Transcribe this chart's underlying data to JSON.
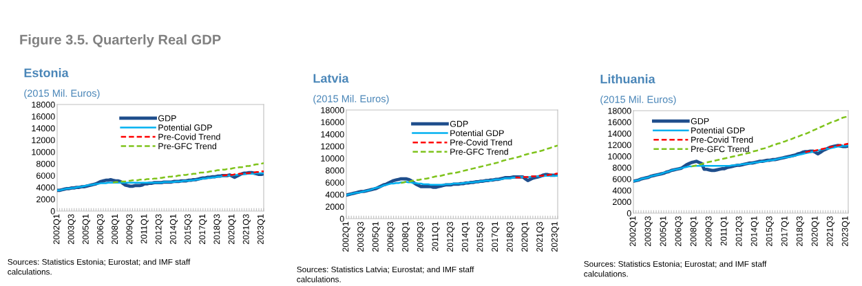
{
  "chart_data": [
    {
      "type": "line",
      "title": "Estonia",
      "subtitle": "(2015 Mil. Euros)",
      "annotations": [
        "Figure 3.5. Quarterly Real GDP",
        "Sources: Statistics Estonia; Eurostat; and IMF staff calculations."
      ],
      "categories": [
        "2002Q1",
        null,
        null,
        null,
        null,
        null,
        "2003Q3",
        null,
        null,
        null,
        null,
        null,
        "2005Q1",
        null,
        null,
        null,
        null,
        null,
        "2006Q3",
        null,
        null,
        null,
        null,
        null,
        "2008Q1",
        null,
        null,
        null,
        null,
        null,
        "2009Q3",
        null,
        null,
        null,
        null,
        null,
        "2011Q1",
        null,
        null,
        null,
        null,
        null,
        "2012Q3",
        null,
        null,
        null,
        null,
        null,
        "2014Q1",
        null,
        null,
        null,
        null,
        null,
        "2015Q3",
        null,
        null,
        null,
        null,
        null,
        "2017Q1",
        null,
        null,
        null,
        null,
        null,
        "2018Q3",
        null,
        null,
        null,
        null,
        null,
        "2020Q1",
        null,
        null,
        null,
        null,
        null,
        "2021Q3",
        null,
        null,
        null,
        null,
        null,
        "2023Q1",
        null
      ],
      "ylim": [
        0,
        18000
      ],
      "yticks": [
        0,
        2000,
        4000,
        6000,
        8000,
        10000,
        12000,
        14000,
        16000,
        18000
      ],
      "grid": false,
      "legend": "top",
      "series": [
        {
          "name": "GDP",
          "color": "#1f4e8c",
          "line_style": "solid",
          "values": [
            3500,
            3500,
            3600,
            3700,
            3800,
            3800,
            3900,
            3900,
            4000,
            4000,
            4100,
            4100,
            4200,
            4300,
            4400,
            4500,
            4600,
            4800,
            5000,
            5100,
            5200,
            5200,
            5300,
            5200,
            5100,
            5100,
            5000,
            4700,
            4400,
            4300,
            4200,
            4200,
            4300,
            4300,
            4300,
            4400,
            4600,
            4600,
            4700,
            4700,
            4800,
            4800,
            4800,
            4800,
            4900,
            4900,
            4900,
            4900,
            5000,
            5000,
            5000,
            5100,
            5100,
            5100,
            5200,
            5200,
            5300,
            5300,
            5400,
            5500,
            5600,
            5600,
            5700,
            5700,
            5800,
            5800,
            5900,
            5900,
            6000,
            6000,
            6000,
            6100,
            5900,
            5700,
            5900,
            6100,
            6300,
            6400,
            6400,
            6500,
            6500,
            6400,
            6300,
            6200,
            6200,
            6300
          ]
        },
        {
          "name": "Potential GDP",
          "color": "#00b0f0",
          "line_style": "solid",
          "values": [
            3500,
            3500,
            3600,
            3700,
            3800,
            3800,
            3900,
            3900,
            4000,
            4100,
            4100,
            4200,
            4300,
            4400,
            4400,
            4500,
            4600,
            4600,
            4700,
            4700,
            4700,
            4800,
            4800,
            4800,
            4800,
            4800,
            4800,
            4800,
            4800,
            4800,
            4800,
            4800,
            4800,
            4800,
            4800,
            4800,
            4800,
            4800,
            4800,
            4800,
            4800,
            4800,
            4800,
            4800,
            4900,
            4900,
            4900,
            4900,
            4900,
            5000,
            5000,
            5000,
            5100,
            5100,
            5100,
            5200,
            5200,
            5300,
            5300,
            5400,
            5500,
            5500,
            5600,
            5600,
            5700,
            5700,
            5800,
            5800,
            5900,
            5900,
            6000,
            6000,
            6000,
            6100,
            6100,
            6200,
            6200,
            6200,
            6300,
            6300,
            6300,
            6300,
            6400,
            6400,
            6400,
            6400
          ]
        },
        {
          "name": "Pre-Covid Trend",
          "color": "#ff0000",
          "line_style": "dashed",
          "values": [
            null,
            null,
            null,
            null,
            null,
            null,
            null,
            null,
            null,
            null,
            null,
            null,
            null,
            null,
            null,
            null,
            null,
            null,
            null,
            null,
            null,
            null,
            null,
            null,
            null,
            null,
            null,
            null,
            null,
            null,
            null,
            null,
            null,
            null,
            null,
            null,
            null,
            null,
            null,
            null,
            null,
            null,
            null,
            null,
            null,
            null,
            null,
            null,
            null,
            null,
            null,
            null,
            null,
            null,
            null,
            null,
            null,
            null,
            null,
            null,
            null,
            null,
            null,
            null,
            null,
            null,
            null,
            null,
            6000,
            6000,
            6100,
            6100,
            6100,
            6200,
            6200,
            6300,
            6300,
            6300,
            6400,
            6400,
            6500,
            6500,
            6600,
            6600,
            6700,
            6700
          ]
        },
        {
          "name": "Pre-GFC Trend",
          "color": "#7fc31c",
          "line_style": "dashed",
          "values": [
            null,
            null,
            null,
            null,
            null,
            null,
            null,
            null,
            null,
            null,
            null,
            null,
            null,
            null,
            null,
            null,
            null,
            null,
            null,
            null,
            null,
            null,
            null,
            4800,
            4900,
            4900,
            5000,
            5000,
            5000,
            5100,
            5100,
            5200,
            5200,
            5200,
            5300,
            5300,
            5300,
            5400,
            5400,
            5400,
            5500,
            5500,
            5600,
            5600,
            5700,
            5700,
            5800,
            5800,
            5900,
            5900,
            6000,
            6000,
            6100,
            6100,
            6200,
            6200,
            6300,
            6300,
            6400,
            6500,
            6500,
            6600,
            6600,
            6700,
            6700,
            6800,
            6900,
            6900,
            7000,
            7000,
            7100,
            7100,
            7200,
            7300,
            7300,
            7400,
            7400,
            7500,
            7600,
            7600,
            7700,
            7800,
            7900,
            7900,
            8000,
            8100
          ]
        }
      ]
    },
    {
      "type": "line",
      "title": "Latvia",
      "subtitle": "(2015 Mil. Euros)",
      "annotations": [
        "Sources: Statistics Latvia; Eurostat; and IMF staff calculations."
      ],
      "categories": [
        "2002Q1",
        null,
        null,
        null,
        null,
        null,
        "2003Q3",
        null,
        null,
        null,
        null,
        null,
        "2005Q1",
        null,
        null,
        null,
        null,
        null,
        "2006Q3",
        null,
        null,
        null,
        null,
        null,
        "2008Q1",
        null,
        null,
        null,
        null,
        null,
        "2009Q3",
        null,
        null,
        null,
        null,
        null,
        "2011Q1",
        null,
        null,
        null,
        null,
        null,
        "2012Q3",
        null,
        null,
        null,
        null,
        null,
        "2014Q1",
        null,
        null,
        null,
        null,
        null,
        "2015Q3",
        null,
        null,
        null,
        null,
        null,
        "2017Q1",
        null,
        null,
        null,
        null,
        null,
        "2018Q3",
        null,
        null,
        null,
        null,
        null,
        "2020Q1",
        null,
        null,
        null,
        null,
        null,
        "2021Q3",
        null,
        null,
        null,
        null,
        null,
        "2023Q1",
        null
      ],
      "ylim": [
        0,
        18000
      ],
      "yticks": [
        0,
        2000,
        4000,
        6000,
        8000,
        10000,
        12000,
        14000,
        16000,
        18000
      ],
      "grid": false,
      "legend": "top",
      "series": [
        {
          "name": "GDP",
          "color": "#1f4e8c",
          "line_style": "solid",
          "values": [
            3900,
            4000,
            4100,
            4200,
            4300,
            4400,
            4500,
            4500,
            4600,
            4700,
            4800,
            4900,
            5000,
            5200,
            5400,
            5600,
            5700,
            5900,
            6100,
            6300,
            6400,
            6500,
            6600,
            6600,
            6600,
            6500,
            6300,
            6000,
            5700,
            5500,
            5300,
            5300,
            5300,
            5300,
            5300,
            5200,
            5200,
            5300,
            5400,
            5500,
            5600,
            5600,
            5600,
            5700,
            5700,
            5700,
            5800,
            5800,
            5900,
            5900,
            6000,
            6000,
            6100,
            6100,
            6200,
            6200,
            6300,
            6300,
            6400,
            6400,
            6500,
            6500,
            6600,
            6700,
            6800,
            6800,
            6800,
            6900,
            6900,
            6900,
            6900,
            6900,
            6600,
            6300,
            6500,
            6700,
            6800,
            6900,
            7000,
            7200,
            7300,
            7300,
            7200,
            7200,
            7200,
            7300
          ]
        },
        {
          "name": "Potential GDP",
          "color": "#00b0f0",
          "line_style": "solid",
          "values": [
            3900,
            4000,
            4100,
            4200,
            4300,
            4300,
            4400,
            4500,
            4600,
            4700,
            4800,
            5000,
            5100,
            5200,
            5300,
            5500,
            5600,
            5700,
            5800,
            5800,
            5900,
            5900,
            6000,
            6000,
            6100,
            6000,
            6000,
            5900,
            5900,
            5800,
            5800,
            5700,
            5700,
            5700,
            5600,
            5600,
            5600,
            5600,
            5600,
            5600,
            5700,
            5700,
            5700,
            5800,
            5800,
            5800,
            5800,
            5900,
            5900,
            6000,
            6000,
            6000,
            6100,
            6100,
            6200,
            6200,
            6300,
            6300,
            6300,
            6400,
            6500,
            6500,
            6500,
            6600,
            6700,
            6700,
            6700,
            6800,
            6800,
            6800,
            6900,
            6900,
            6900,
            6900,
            6900,
            7000,
            7000,
            7000,
            7000,
            7000,
            7100,
            7100,
            7100,
            7100,
            7100,
            7100
          ]
        },
        {
          "name": "Pre-Covid Trend",
          "color": "#ff0000",
          "line_style": "dashed",
          "values": [
            null,
            null,
            null,
            null,
            null,
            null,
            null,
            null,
            null,
            null,
            null,
            null,
            null,
            null,
            null,
            null,
            null,
            null,
            null,
            null,
            null,
            null,
            null,
            null,
            null,
            null,
            null,
            null,
            null,
            null,
            null,
            null,
            null,
            null,
            null,
            null,
            null,
            null,
            null,
            null,
            null,
            null,
            null,
            null,
            null,
            null,
            null,
            null,
            null,
            null,
            null,
            null,
            null,
            null,
            null,
            null,
            null,
            null,
            null,
            null,
            null,
            null,
            null,
            null,
            null,
            null,
            null,
            null,
            6800,
            6800,
            6800,
            6900,
            6900,
            6900,
            7000,
            7000,
            7000,
            7100,
            7100,
            7100,
            7200,
            7200,
            7300,
            7300,
            7400,
            7500
          ]
        },
        {
          "name": "Pre-GFC Trend",
          "color": "#7fc31c",
          "line_style": "dashed",
          "values": [
            null,
            null,
            null,
            null,
            null,
            null,
            null,
            null,
            null,
            null,
            null,
            null,
            null,
            null,
            null,
            null,
            null,
            null,
            null,
            null,
            null,
            null,
            5900,
            6000,
            6100,
            6100,
            6200,
            6300,
            6400,
            6400,
            6500,
            6600,
            6600,
            6700,
            6800,
            6900,
            7000,
            7000,
            7100,
            7200,
            7300,
            7400,
            7500,
            7500,
            7600,
            7700,
            7800,
            7900,
            8000,
            8100,
            8200,
            8300,
            8400,
            8500,
            8600,
            8700,
            8800,
            8900,
            9000,
            9100,
            9200,
            9300,
            9400,
            9600,
            9700,
            9800,
            9900,
            10000,
            10100,
            10200,
            10300,
            10500,
            10600,
            10700,
            10800,
            10900,
            11000,
            11100,
            11200,
            11300,
            11500,
            11600,
            11700,
            11900,
            12000,
            12100
          ]
        }
      ]
    },
    {
      "type": "line",
      "title": "Lithuania",
      "subtitle": "(2015 Mil. Euros)",
      "annotations": [
        "Sources: Statistics Estonia; Eurostat; and IMF staff calculations."
      ],
      "categories": [
        "2002Q1",
        null,
        null,
        null,
        null,
        null,
        "2003Q3",
        null,
        null,
        null,
        null,
        null,
        "2005Q1",
        null,
        null,
        null,
        null,
        null,
        "2006Q3",
        null,
        null,
        null,
        null,
        null,
        "2008Q1",
        null,
        null,
        null,
        null,
        null,
        "2009Q3",
        null,
        null,
        null,
        null,
        null,
        "2011Q1",
        null,
        null,
        null,
        null,
        null,
        "2012Q3",
        null,
        null,
        null,
        null,
        null,
        "2014Q1",
        null,
        null,
        null,
        null,
        null,
        "2015Q3",
        null,
        null,
        null,
        null,
        null,
        "2017Q1",
        null,
        null,
        null,
        null,
        null,
        "2018Q3",
        null,
        null,
        null,
        null,
        null,
        "2020Q1",
        null,
        null,
        null,
        null,
        null,
        "2021Q3",
        null,
        null,
        null,
        null,
        null,
        "2023Q1",
        null
      ],
      "ylim": [
        0,
        18000
      ],
      "yticks": [
        0,
        2000,
        4000,
        6000,
        8000,
        10000,
        12000,
        14000,
        16000,
        18000
      ],
      "grid": false,
      "legend": "top left",
      "series": [
        {
          "name": "GDP",
          "color": "#1f4e8c",
          "line_style": "solid",
          "values": [
            5600,
            5700,
            5800,
            6000,
            6100,
            6200,
            6300,
            6500,
            6600,
            6700,
            6800,
            6900,
            7000,
            7200,
            7300,
            7500,
            7600,
            7700,
            7800,
            7900,
            8200,
            8500,
            8700,
            8900,
            9000,
            9100,
            8900,
            8700,
            7700,
            7700,
            7600,
            7500,
            7500,
            7600,
            7700,
            7800,
            7800,
            8000,
            8100,
            8200,
            8300,
            8400,
            8400,
            8500,
            8600,
            8700,
            8800,
            8800,
            8900,
            9000,
            9100,
            9100,
            9200,
            9300,
            9300,
            9400,
            9400,
            9500,
            9600,
            9700,
            9800,
            9900,
            10000,
            10100,
            10200,
            10400,
            10500,
            10700,
            10800,
            10800,
            10900,
            10900,
            10700,
            10400,
            10700,
            11000,
            11200,
            11400,
            11600,
            11700,
            11800,
            11900,
            11800,
            11700,
            11700,
            11800
          ]
        },
        {
          "name": "Potential GDP",
          "color": "#00b0f0",
          "line_style": "solid",
          "values": [
            5600,
            5700,
            5800,
            6000,
            6100,
            6200,
            6300,
            6500,
            6600,
            6700,
            6800,
            6900,
            7100,
            7200,
            7300,
            7500,
            7600,
            7700,
            7800,
            7900,
            8000,
            8100,
            8200,
            8200,
            8300,
            8300,
            8300,
            8300,
            8300,
            8300,
            8300,
            8300,
            8300,
            8300,
            8300,
            8300,
            8300,
            8300,
            8300,
            8400,
            8400,
            8500,
            8500,
            8600,
            8600,
            8700,
            8700,
            8800,
            8900,
            8900,
            9000,
            9100,
            9100,
            9200,
            9300,
            9300,
            9400,
            9500,
            9600,
            9700,
            9800,
            9800,
            9900,
            10000,
            10100,
            10200,
            10300,
            10400,
            10500,
            10600,
            10700,
            10800,
            10900,
            11000,
            11100,
            11200,
            11300,
            11300,
            11400,
            11500,
            11600,
            11700,
            11700,
            11800,
            11800,
            11900
          ]
        },
        {
          "name": "Pre-Covid Trend",
          "color": "#ff0000",
          "line_style": "dashed",
          "values": [
            null,
            null,
            null,
            null,
            null,
            null,
            null,
            null,
            null,
            null,
            null,
            null,
            null,
            null,
            null,
            null,
            null,
            null,
            null,
            null,
            null,
            null,
            null,
            null,
            null,
            null,
            null,
            null,
            null,
            null,
            null,
            null,
            null,
            null,
            null,
            null,
            null,
            null,
            null,
            null,
            null,
            null,
            null,
            null,
            null,
            null,
            null,
            null,
            null,
            null,
            null,
            null,
            null,
            null,
            null,
            null,
            null,
            null,
            null,
            null,
            null,
            null,
            null,
            null,
            null,
            null,
            null,
            null,
            10700,
            10800,
            10900,
            10900,
            11000,
            11100,
            11200,
            11300,
            11400,
            11500,
            11600,
            11700,
            11800,
            11900,
            12000,
            12000,
            12100,
            12200
          ]
        },
        {
          "name": "Pre-GFC Trend",
          "color": "#7fc31c",
          "line_style": "dashed",
          "values": [
            null,
            null,
            null,
            null,
            null,
            null,
            null,
            null,
            null,
            null,
            null,
            null,
            null,
            null,
            null,
            null,
            null,
            null,
            null,
            null,
            null,
            null,
            null,
            8200,
            8300,
            8400,
            8500,
            8600,
            8800,
            8900,
            9000,
            9100,
            9200,
            9300,
            9400,
            9500,
            9600,
            9700,
            9800,
            9900,
            10000,
            10100,
            10200,
            10300,
            10400,
            10500,
            10600,
            10800,
            10900,
            11000,
            11200,
            11300,
            11400,
            11600,
            11700,
            11900,
            12000,
            12200,
            12300,
            12500,
            12600,
            12800,
            12900,
            13100,
            13300,
            13400,
            13600,
            13800,
            13900,
            14100,
            14300,
            14500,
            14700,
            14900,
            15100,
            15300,
            15500,
            15700,
            15900,
            16100,
            16200,
            16400,
            16600,
            16800,
            16900,
            17000
          ]
        }
      ]
    }
  ]
}
